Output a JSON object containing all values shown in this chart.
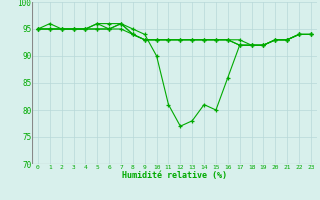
{
  "xlabel": "Humidité relative (%)",
  "xlim_min": -0.5,
  "xlim_max": 23.5,
  "ylim_min": 70,
  "ylim_max": 100,
  "yticks": [
    70,
    75,
    80,
    85,
    90,
    95,
    100
  ],
  "xticks": [
    0,
    1,
    2,
    3,
    4,
    5,
    6,
    7,
    8,
    9,
    10,
    11,
    12,
    13,
    14,
    15,
    16,
    17,
    18,
    19,
    20,
    21,
    22,
    23
  ],
  "background_color": "#d8f0ec",
  "grid_color": "#b8d8d8",
  "line_color": "#00aa00",
  "series": [
    [
      95,
      96,
      95,
      95,
      95,
      96,
      95,
      96,
      95,
      94,
      90,
      81,
      77,
      78,
      81,
      80,
      86,
      92,
      92,
      92,
      93,
      93,
      94,
      94
    ],
    [
      95,
      95,
      95,
      95,
      95,
      96,
      96,
      96,
      94,
      93,
      93,
      93,
      93,
      93,
      93,
      93,
      93,
      93,
      92,
      92,
      93,
      93,
      94,
      94
    ],
    [
      95,
      95,
      95,
      95,
      95,
      95,
      95,
      96,
      94,
      93,
      93,
      93,
      93,
      93,
      93,
      93,
      93,
      92,
      92,
      92,
      93,
      93,
      94,
      94
    ],
    [
      95,
      95,
      95,
      95,
      95,
      95,
      95,
      95,
      94,
      93,
      93,
      93,
      93,
      93,
      93,
      93,
      93,
      92,
      92,
      92,
      93,
      93,
      94,
      94
    ]
  ]
}
